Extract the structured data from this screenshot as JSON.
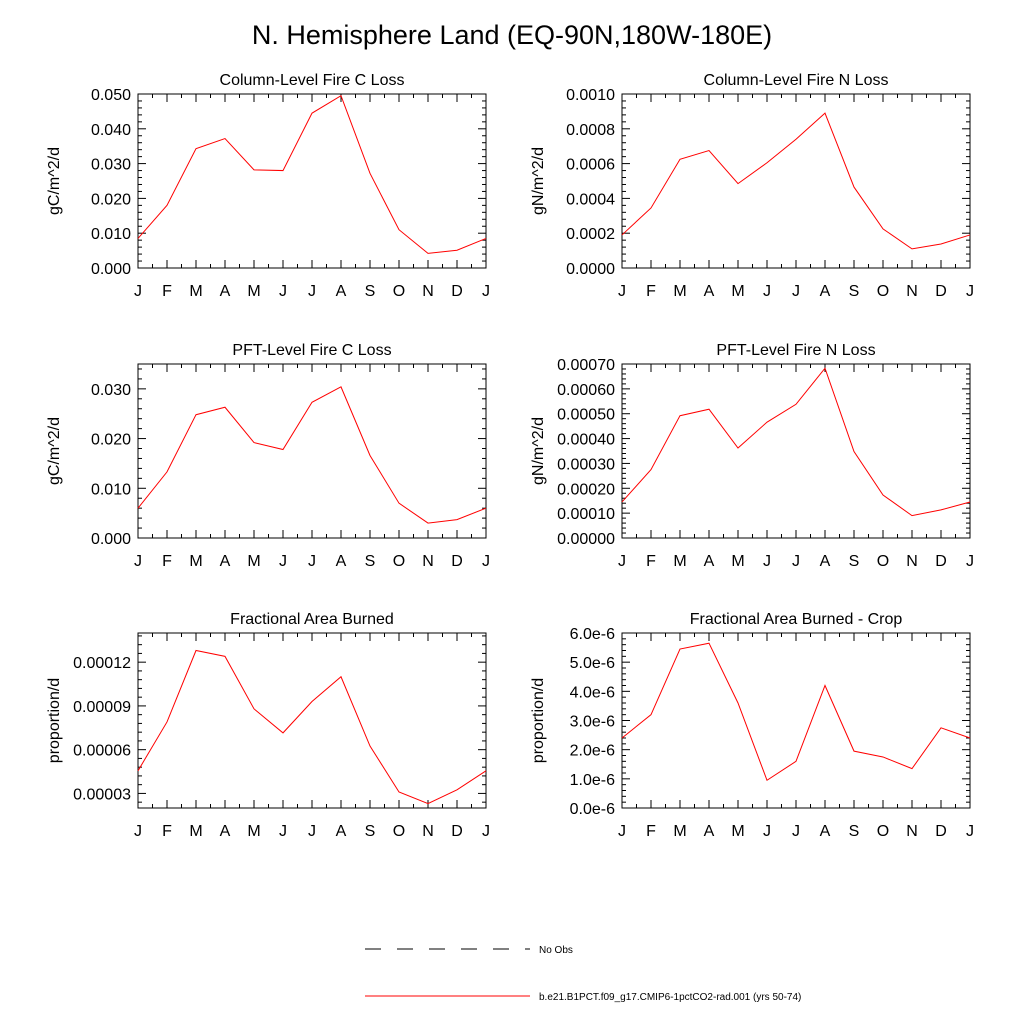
{
  "page_title": "N. Hemisphere Land (EQ-90N,180W-180E)",
  "legend": {
    "obs_label": "No Obs",
    "model_label": "b.e21.B1PCT.f09_g17.CMIP6-1pctCO2-rad.001 (yrs 50-74)",
    "model_color": "#ff0000",
    "obs_color": "#000000"
  },
  "chart_data": [
    {
      "type": "line",
      "title": "Column-Level Fire C Loss",
      "ylabel": "gC/m^2/d",
      "categories": [
        "J",
        "F",
        "M",
        "A",
        "M",
        "J",
        "J",
        "A",
        "S",
        "O",
        "N",
        "D",
        "J"
      ],
      "ylim": [
        0,
        0.05
      ],
      "yticks": [
        0.0,
        0.01,
        0.02,
        0.03,
        0.04,
        0.05
      ],
      "yticklabels": [
        "0.000",
        "0.010",
        "0.020",
        "0.030",
        "0.040",
        "0.050"
      ],
      "series": [
        {
          "values": [
            0.0085,
            0.018,
            0.0343,
            0.0372,
            0.0282,
            0.028,
            0.0445,
            0.0495,
            0.0272,
            0.011,
            0.0042,
            0.0051,
            0.0085
          ]
        }
      ]
    },
    {
      "type": "line",
      "title": "Column-Level Fire N Loss",
      "ylabel": "gN/m^2/d",
      "categories": [
        "J",
        "F",
        "M",
        "A",
        "M",
        "J",
        "J",
        "A",
        "S",
        "O",
        "N",
        "D",
        "J"
      ],
      "ylim": [
        0,
        0.001
      ],
      "yticks": [
        0.0,
        0.0002,
        0.0004,
        0.0006,
        0.0008,
        0.001
      ],
      "yticklabels": [
        "0.0000",
        "0.0002",
        "0.0004",
        "0.0006",
        "0.0008",
        "0.0010"
      ],
      "series": [
        {
          "values": [
            0.00019,
            0.000345,
            0.000625,
            0.000675,
            0.000485,
            0.000605,
            0.00074,
            0.00089,
            0.000465,
            0.000225,
            0.00011,
            0.000138,
            0.00019
          ]
        }
      ]
    },
    {
      "type": "line",
      "title": "PFT-Level Fire C Loss",
      "ylabel": "gC/m^2/d",
      "categories": [
        "J",
        "F",
        "M",
        "A",
        "M",
        "J",
        "J",
        "A",
        "S",
        "O",
        "N",
        "D",
        "J"
      ],
      "ylim": [
        0,
        0.035
      ],
      "yticks": [
        0.0,
        0.01,
        0.02,
        0.03
      ],
      "yticklabels": [
        "0.000",
        "0.010",
        "0.020",
        "0.030"
      ],
      "series": [
        {
          "values": [
            0.006,
            0.0133,
            0.0248,
            0.0263,
            0.0192,
            0.0178,
            0.0273,
            0.0304,
            0.0166,
            0.007,
            0.003,
            0.0037,
            0.006
          ]
        }
      ]
    },
    {
      "type": "line",
      "title": "PFT-Level Fire N Loss",
      "ylabel": "gN/m^2/d",
      "categories": [
        "J",
        "F",
        "M",
        "A",
        "M",
        "J",
        "J",
        "A",
        "S",
        "O",
        "N",
        "D",
        "J"
      ],
      "ylim": [
        0,
        0.0007
      ],
      "yticks": [
        0.0,
        0.0001,
        0.0002,
        0.0003,
        0.0004,
        0.0005,
        0.0006,
        0.0007
      ],
      "yticklabels": [
        "0.00000",
        "0.00010",
        "0.00020",
        "0.00030",
        "0.00040",
        "0.00050",
        "0.00060",
        "0.00070"
      ],
      "series": [
        {
          "values": [
            0.000145,
            0.000275,
            0.000492,
            0.000518,
            0.000362,
            0.000466,
            0.000538,
            0.000683,
            0.000348,
            0.000173,
            9e-05,
            0.000113,
            0.000145
          ]
        }
      ]
    },
    {
      "type": "line",
      "title": "Fractional Area Burned",
      "ylabel": "proportion/d",
      "categories": [
        "J",
        "F",
        "M",
        "A",
        "M",
        "J",
        "J",
        "A",
        "S",
        "O",
        "N",
        "D",
        "J"
      ],
      "ylim": [
        2e-05,
        0.00014
      ],
      "yticks": [
        3e-05,
        6e-05,
        9e-05,
        0.00012
      ],
      "yticklabels": [
        "0.00003",
        "0.00006",
        "0.00009",
        "0.00012"
      ],
      "series": [
        {
          "values": [
            4.55e-05,
            7.9e-05,
            0.000128,
            0.000124,
            8.8e-05,
            7.15e-05,
            9.3e-05,
            0.00011,
            6.25e-05,
            3.1e-05,
            2.3e-05,
            3.25e-05,
            4.55e-05
          ]
        }
      ]
    },
    {
      "type": "line",
      "title": "Fractional Area Burned - Crop",
      "ylabel": "proportion/d",
      "categories": [
        "J",
        "F",
        "M",
        "A",
        "M",
        "J",
        "J",
        "A",
        "S",
        "O",
        "N",
        "D",
        "J"
      ],
      "ylim": [
        0,
        6e-06
      ],
      "yticks": [
        0,
        1e-06,
        2e-06,
        3e-06,
        4e-06,
        5e-06,
        6e-06
      ],
      "yticklabels": [
        "0.0e-6",
        "1.0e-6",
        "2.0e-6",
        "3.0e-6",
        "4.0e-6",
        "5.0e-6",
        "6.0e-6"
      ],
      "series": [
        {
          "values": [
            2.4e-06,
            3.2e-06,
            5.45e-06,
            5.65e-06,
            3.6e-06,
            9.5e-07,
            1.6e-06,
            4.2e-06,
            1.95e-06,
            1.75e-06,
            1.35e-06,
            2.75e-06,
            2.4e-06
          ]
        }
      ]
    }
  ]
}
